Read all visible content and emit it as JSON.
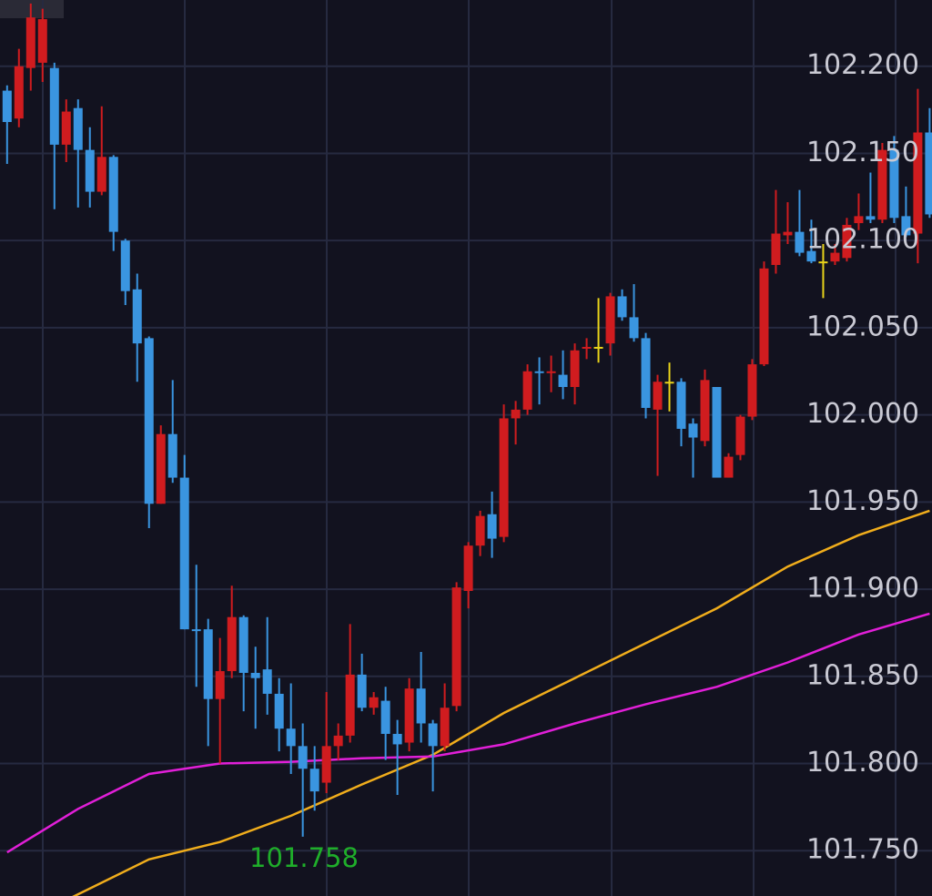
{
  "chart_data": {
    "type": "candlestick",
    "annotation": "101.758",
    "up_color": "#d01c1f",
    "down_color": "#3a95e0",
    "doji_color": "#e8d31a",
    "grid": true,
    "xlim": [
      -0.6,
      78.2
    ],
    "ylim": [
      101.724,
      102.238
    ],
    "yticks": [
      {
        "value": 102.2,
        "label": "102.200"
      },
      {
        "value": 102.15,
        "label": "102.150"
      },
      {
        "value": 102.1,
        "label": "102.100"
      },
      {
        "value": 102.05,
        "label": "102.050"
      },
      {
        "value": 102.0,
        "label": "102.000"
      },
      {
        "value": 101.95,
        "label": "101.950"
      },
      {
        "value": 101.9,
        "label": "101.900"
      },
      {
        "value": 101.85,
        "label": "101.850"
      },
      {
        "value": 101.8,
        "label": "101.800"
      },
      {
        "value": 101.75,
        "label": "101.750"
      }
    ],
    "open": [
      102.186,
      102.17,
      102.199,
      102.202,
      102.199,
      102.155,
      102.176,
      102.152,
      102.128,
      102.148,
      102.1,
      102.072,
      102.044,
      101.949,
      101.989,
      101.964,
      101.877,
      101.877,
      101.837,
      101.853,
      101.884,
      101.852,
      101.854,
      101.84,
      101.82,
      101.81,
      101.797,
      101.789,
      101.81,
      101.816,
      101.851,
      101.832,
      101.836,
      101.817,
      101.812,
      101.843,
      101.823,
      101.81,
      101.833,
      101.899,
      101.925,
      101.943,
      101.93,
      101.998,
      102.003,
      102.025,
      102.024,
      102.023,
      102.016,
      102.038,
      102.039,
      102.041,
      102.068,
      102.056,
      102.044,
      102.003,
      102.019,
      102.019,
      101.995,
      101.985,
      102.016,
      101.964,
      101.977,
      101.999,
      102.029,
      102.086,
      102.103,
      102.105,
      102.094,
      102.088,
      102.088,
      102.09,
      102.11,
      102.114,
      102.112,
      102.152,
      102.114,
      102.104,
      102.162
    ],
    "high": [
      102.189,
      102.21,
      102.236,
      102.233,
      102.202,
      102.181,
      102.181,
      102.165,
      102.177,
      102.149,
      102.101,
      102.081,
      102.045,
      101.994,
      102.02,
      101.977,
      101.914,
      101.883,
      101.872,
      101.902,
      101.885,
      101.867,
      101.884,
      101.849,
      101.846,
      101.823,
      101.81,
      101.841,
      101.823,
      101.88,
      101.863,
      101.841,
      101.844,
      101.825,
      101.849,
      101.864,
      101.825,
      101.846,
      101.904,
      101.927,
      101.945,
      101.956,
      102.006,
      102.008,
      102.029,
      102.033,
      102.034,
      102.037,
      102.041,
      102.044,
      102.067,
      102.07,
      102.072,
      102.075,
      102.047,
      102.023,
      102.03,
      102.021,
      101.998,
      102.026,
      102.016,
      101.978,
      102.0,
      102.032,
      102.088,
      102.129,
      102.122,
      102.129,
      102.112,
      102.098,
      102.098,
      102.113,
      102.127,
      102.139,
      102.156,
      102.16,
      102.131,
      102.187,
      102.176
    ],
    "low": [
      102.144,
      102.165,
      102.186,
      102.191,
      102.118,
      102.145,
      102.119,
      102.119,
      102.126,
      102.094,
      102.063,
      102.019,
      101.935,
      101.949,
      101.961,
      101.877,
      101.844,
      101.81,
      101.8,
      101.849,
      101.83,
      101.82,
      101.828,
      101.807,
      101.794,
      101.758,
      101.773,
      101.783,
      101.802,
      101.812,
      101.83,
      101.828,
      101.802,
      101.782,
      101.807,
      101.812,
      101.784,
      101.807,
      101.83,
      101.889,
      101.919,
      101.918,
      101.927,
      101.983,
      102.0,
      102.006,
      102.013,
      102.009,
      102.006,
      102.032,
      102.03,
      102.034,
      102.054,
      102.042,
      101.998,
      101.965,
      102.002,
      101.982,
      101.964,
      101.982,
      101.964,
      101.964,
      101.974,
      101.997,
      102.028,
      102.081,
      102.098,
      102.091,
      102.087,
      102.067,
      102.086,
      102.088,
      102.106,
      102.11,
      102.11,
      102.11,
      102.102,
      102.087,
      102.113
    ],
    "close": [
      102.168,
      102.2,
      102.228,
      102.227,
      102.155,
      102.174,
      102.152,
      102.128,
      102.148,
      102.105,
      102.071,
      102.041,
      101.949,
      101.989,
      101.964,
      101.877,
      101.876,
      101.837,
      101.853,
      101.884,
      101.852,
      101.849,
      101.84,
      101.82,
      101.81,
      101.797,
      101.784,
      101.81,
      101.816,
      101.851,
      101.832,
      101.838,
      101.817,
      101.811,
      101.843,
      101.823,
      101.81,
      101.832,
      101.901,
      101.925,
      101.942,
      101.929,
      101.998,
      102.003,
      102.025,
      102.024,
      102.025,
      102.016,
      102.037,
      102.039,
      102.039,
      102.068,
      102.056,
      102.044,
      102.004,
      102.019,
      102.019,
      101.992,
      101.987,
      102.02,
      101.964,
      101.976,
      101.999,
      102.029,
      102.084,
      102.104,
      102.105,
      102.093,
      102.088,
      102.088,
      102.093,
      102.109,
      102.114,
      102.112,
      102.152,
      102.113,
      102.103,
      102.162,
      102.115
    ],
    "series": [
      {
        "color": "#f0ad1c",
        "x": [
          0,
          6,
          12,
          18,
          24,
          30,
          36,
          42,
          48,
          54,
          60,
          66,
          72,
          78
        ],
        "values": [
          101.705,
          101.725,
          101.745,
          101.755,
          101.77,
          101.788,
          101.805,
          101.829,
          101.849,
          101.869,
          101.889,
          101.913,
          101.931,
          101.945
        ]
      },
      {
        "color": "#e11fd8",
        "x": [
          0,
          6,
          12,
          18,
          24,
          30,
          36,
          42,
          48,
          54,
          60,
          66,
          72,
          78
        ],
        "values": [
          101.749,
          101.774,
          101.794,
          101.8,
          101.801,
          101.803,
          101.804,
          101.811,
          101.823,
          101.834,
          101.844,
          101.858,
          101.874,
          101.886
        ]
      }
    ]
  }
}
